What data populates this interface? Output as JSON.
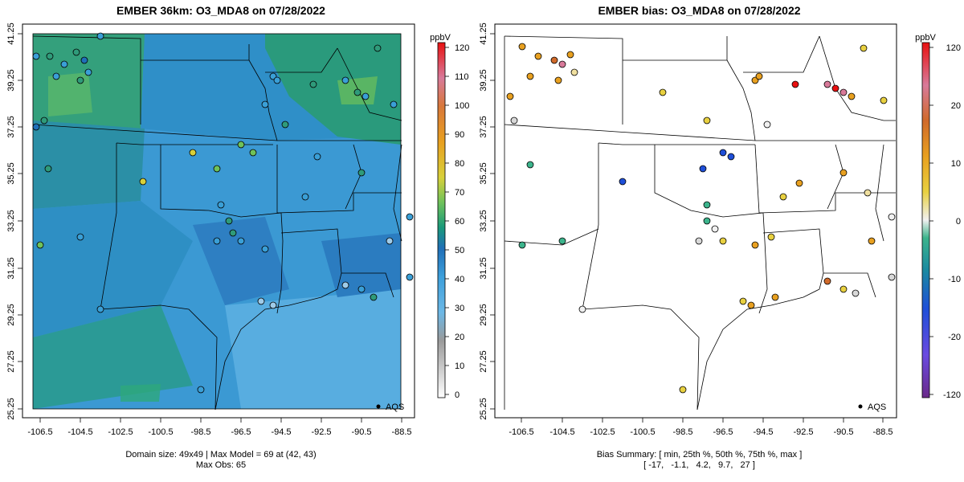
{
  "left_panel": {
    "title": "EMBER 36km: O3_MDA8 on 07/28/2022",
    "legend_unit": "ppbV",
    "legend_ticks": [
      "0",
      "10",
      "20",
      "30",
      "40",
      "50",
      "60",
      "70",
      "80",
      "90",
      "100",
      "110",
      "120"
    ],
    "legend_range": [
      -3,
      122
    ],
    "aqs_label": "AQS",
    "footer_line1": "Domain size: 49x49 | Max Model = 69 at (42, 43)",
    "footer_line2": "Max Obs: 65"
  },
  "right_panel": {
    "title": "EMBER bias: O3_MDA8 on 07/28/2022",
    "legend_unit": "ppbV",
    "legend_ticks": [
      "120",
      "20",
      "10",
      "0",
      "-10",
      "-20",
      "-120"
    ],
    "aqs_label": "AQS",
    "footer_line1": "Bias Summary: [ min, 25th %, 50th %, 75th %, max ]",
    "footer_line2": "[ -17,   -1.1,   4.2,   9.7,   27 ]"
  },
  "axes": {
    "x_ticks": [
      "-106.5",
      "-104.5",
      "-102.5",
      "-100.5",
      "-98.5",
      "-96.5",
      "-94.5",
      "-92.5",
      "-90.5",
      "-88.5"
    ],
    "y_ticks": [
      "41.25",
      "39.25",
      "37.25",
      "35.25",
      "33.25",
      "31.25",
      "29.25",
      "27.25",
      "25.25"
    ],
    "lon_range": [
      -107.3,
      -88.2
    ],
    "lat_range": [
      25.25,
      41.25
    ]
  },
  "colors": {
    "model_field_base": "#4aa3dc",
    "model_field_dark": "#2f86c8",
    "model_field_green": "#2ea37c",
    "bias_positive": "#e8a020",
    "bias_negative": "#3cb48c",
    "boundary": "#000000"
  }
}
